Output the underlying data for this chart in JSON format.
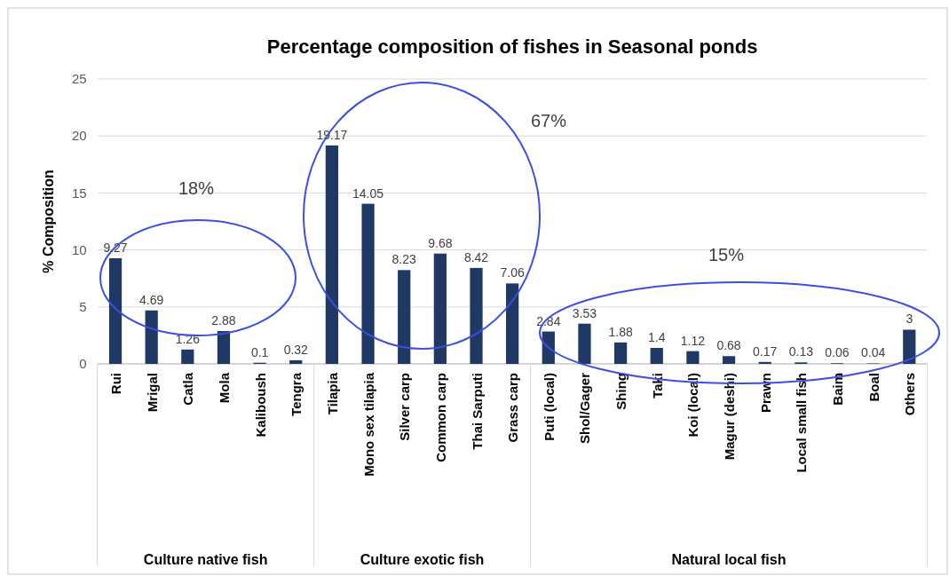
{
  "chart_data": {
    "type": "bar",
    "title": "Percentage composition of fishes in Seasonal ponds",
    "ylabel": "% Composition",
    "categories": [
      "Rui",
      "Mrigal",
      "Catla",
      "Mola",
      "Kaliboush",
      "Tengra",
      "Tilapia",
      "Mono sex tilapia",
      "Silver carp",
      "Common carp",
      "Thai Sarputi",
      "Grass carp",
      "Puti (local)",
      "Shol/Gager",
      "Shing",
      "Taki",
      "Koi (local)",
      "Magur (deshi)",
      "Prawn",
      "Local small fish",
      "Baim",
      "Boal",
      "Others"
    ],
    "values": [
      9.27,
      4.69,
      1.26,
      2.88,
      0.1,
      0.32,
      19.17,
      14.05,
      8.23,
      9.68,
      8.42,
      7.06,
      2.84,
      3.53,
      1.88,
      1.4,
      1.12,
      0.68,
      0.17,
      0.13,
      0.06,
      0.04,
      3
    ],
    "color": "#1f3864",
    "ylim": [
      0,
      25
    ],
    "yticks": [
      0,
      5,
      10,
      15,
      20,
      25
    ],
    "grid": "y",
    "data_labels": true,
    "annotations": [
      "Culture native fish",
      "Culture exotic fish",
      "Natural local fish",
      "18%",
      "67%",
      "15%"
    ]
  }
}
